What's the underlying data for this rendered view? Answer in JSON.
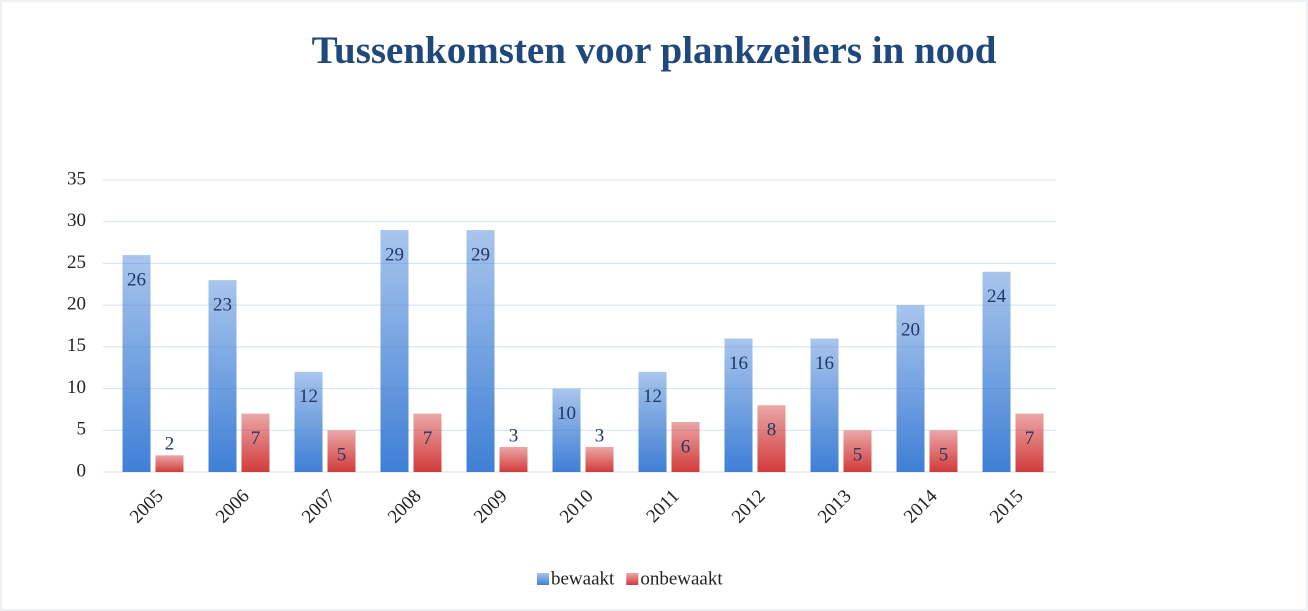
{
  "chart_data": {
    "type": "bar",
    "title": "Tussenkomsten voor plankzeilers in nood",
    "categories": [
      "2005",
      "2006",
      "2007",
      "2008",
      "2009",
      "2010",
      "2011",
      "2012",
      "2013",
      "2014",
      "2015"
    ],
    "series": [
      {
        "name": "bewaakt",
        "color": "#3f7fd6",
        "values": [
          26,
          23,
          12,
          29,
          29,
          10,
          12,
          16,
          16,
          20,
          24
        ]
      },
      {
        "name": "onbewaakt",
        "color": "#d23b3b",
        "values": [
          2,
          7,
          5,
          7,
          3,
          3,
          6,
          8,
          5,
          5,
          7
        ]
      }
    ],
    "ylim": [
      0,
      35
    ],
    "yticks": [
      0,
      5,
      10,
      15,
      20,
      25,
      30,
      35
    ],
    "grid": true,
    "legend": "bottom"
  }
}
